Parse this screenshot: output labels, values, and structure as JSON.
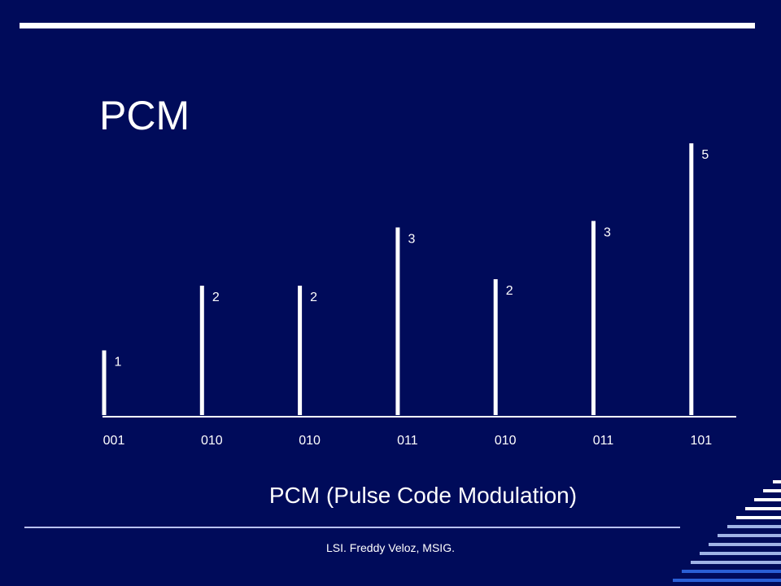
{
  "slide": {
    "title": "PCM",
    "caption": "PCM (Pulse Code Modulation)",
    "footer": "LSI. Freddy Veloz, MSIG."
  },
  "colors": {
    "background": "#000b5a",
    "foreground": "#ffffff",
    "accent_light": "#9fb3e6",
    "accent_blue": "#2a5fd6"
  },
  "chart_data": {
    "type": "bar",
    "categories": [
      "001",
      "010",
      "010",
      "011",
      "010",
      "011",
      "101"
    ],
    "values": [
      1,
      2,
      2,
      3,
      2,
      3,
      5
    ],
    "heights": [
      1.0,
      2.0,
      2.0,
      2.9,
      2.1,
      3.0,
      4.2
    ],
    "value_labels": [
      "1",
      "2",
      "2",
      "3",
      "2",
      "3",
      "5"
    ],
    "title": "",
    "xlabel": "",
    "ylabel": "",
    "grid": false
  }
}
